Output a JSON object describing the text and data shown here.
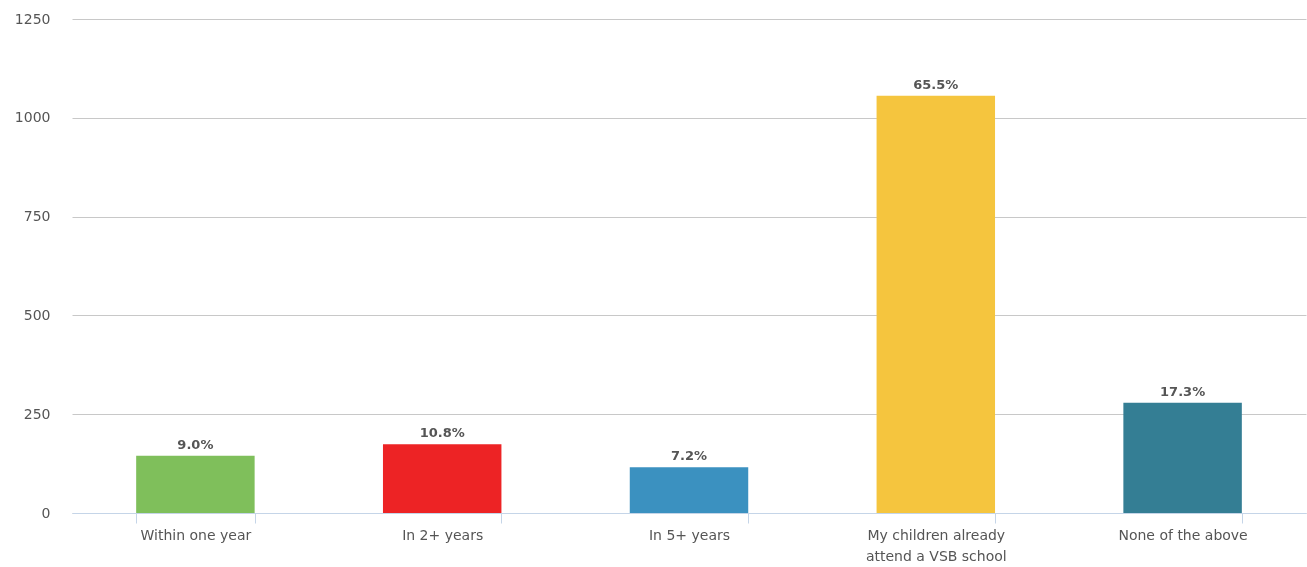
{
  "chart_data": {
    "type": "bar",
    "categories": [
      "Within one year",
      "In 2+ years",
      "In 5+ years",
      "My children already attend a VSB school",
      "None of the above"
    ],
    "values": [
      145,
      174,
      116,
      1056,
      279
    ],
    "colors": [
      "#7fbf5b",
      "#ed2325",
      "#3b91c0",
      "#f5c53e",
      "#347e94"
    ],
    "annotations": [
      {
        "text": "9.0%",
        "x": "Within one year",
        "y": 145
      },
      {
        "text": "10.8%",
        "x": "In 2+ years",
        "y": 174
      },
      {
        "text": "7.2%",
        "x": "In 5+ years",
        "y": 116
      },
      {
        "text": "65.5%",
        "x": "My children already attend a VSB school",
        "y": 1056
      },
      {
        "text": "17.3%",
        "x": "None of the above",
        "y": 279
      }
    ],
    "ylim": [
      0,
      1250
    ],
    "yticks": [
      0,
      250,
      500,
      750,
      1000,
      1250
    ],
    "grid": "y"
  }
}
